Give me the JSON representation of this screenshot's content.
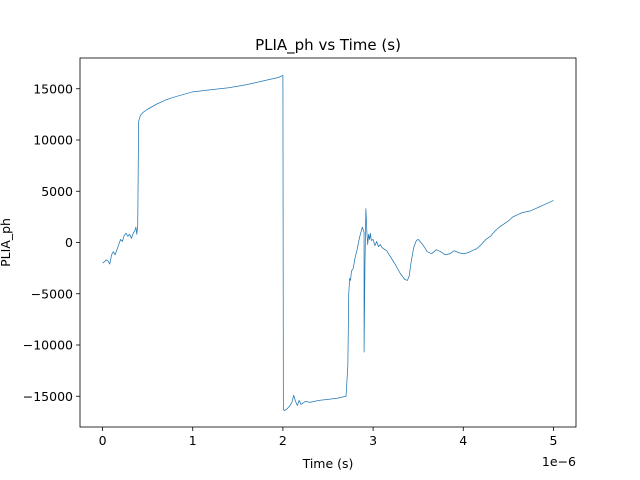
{
  "chart_data": {
    "type": "line",
    "title": "PLIA_ph vs Time (s)",
    "xlabel": "Time (s)",
    "ylabel": "PLIA_ph",
    "x_offset_label": "1e−6",
    "xlim": [
      -0.25,
      5.25
    ],
    "ylim": [
      -18000,
      18000
    ],
    "x_ticks": [
      0,
      1,
      2,
      3,
      4,
      5
    ],
    "x_tick_labels": [
      "0",
      "1",
      "2",
      "3",
      "4",
      "5"
    ],
    "y_ticks": [
      -15000,
      -10000,
      -5000,
      0,
      5000,
      10000,
      15000
    ],
    "y_tick_labels": [
      "−15000",
      "−10000",
      "−5000",
      "0",
      "5000",
      "10000",
      "15000"
    ],
    "grid": false,
    "line_color": "#1f77b4",
    "series": [
      {
        "x": [
          0.0,
          0.02,
          0.04,
          0.06,
          0.08,
          0.1,
          0.12,
          0.14,
          0.16,
          0.18,
          0.2,
          0.22,
          0.24,
          0.26,
          0.28,
          0.3,
          0.32,
          0.34,
          0.36,
          0.37,
          0.38,
          0.39,
          0.4,
          0.42,
          0.45,
          0.5,
          0.6,
          0.7,
          0.8,
          1.0,
          1.2,
          1.4,
          1.6,
          1.8,
          1.95,
          2.0,
          2.005,
          2.02,
          2.05,
          2.08,
          2.1,
          2.12,
          2.14,
          2.16,
          2.18,
          2.2,
          2.25,
          2.3,
          2.4,
          2.5,
          2.6,
          2.7,
          2.72,
          2.73,
          2.74,
          2.75,
          2.76,
          2.78,
          2.8,
          2.82,
          2.85,
          2.88,
          2.9,
          2.9,
          2.91,
          2.92,
          2.93,
          2.94,
          2.95,
          2.96,
          2.97,
          2.98,
          3.0,
          3.02,
          3.04,
          3.06,
          3.08,
          3.1,
          3.15,
          3.2,
          3.25,
          3.3,
          3.35,
          3.38,
          3.4,
          3.42,
          3.45,
          3.48,
          3.5,
          3.52,
          3.55,
          3.58,
          3.6,
          3.65,
          3.7,
          3.75,
          3.8,
          3.85,
          3.9,
          3.95,
          4.0,
          4.05,
          4.1,
          4.15,
          4.2,
          4.25,
          4.3,
          4.35,
          4.4,
          4.45,
          4.5,
          4.55,
          4.6,
          4.65,
          4.7,
          4.75,
          4.8,
          4.85,
          4.9,
          4.95,
          5.0
        ],
        "y": [
          -2000,
          -1900,
          -1700,
          -1800,
          -2100,
          -1200,
          -900,
          -1200,
          -700,
          -200,
          300,
          100,
          700,
          900,
          600,
          800,
          400,
          900,
          1200,
          1500,
          800,
          1600,
          11800,
          12400,
          12700,
          13000,
          13500,
          13900,
          14200,
          14700,
          14900,
          15100,
          15400,
          15800,
          16100,
          16300,
          -16300,
          -16400,
          -16200,
          -15900,
          -15600,
          -14900,
          -15500,
          -15900,
          -15400,
          -15800,
          -15500,
          -15600,
          -15400,
          -15300,
          -15200,
          -15000,
          -12000,
          -5000,
          -3500,
          -3700,
          -2800,
          -2500,
          -1500,
          -800,
          500,
          1500,
          1000,
          -10700,
          -2000,
          3300,
          1200,
          -200,
          800,
          300,
          900,
          200,
          300,
          -300,
          100,
          -400,
          -200,
          -500,
          -800,
          -1500,
          -2200,
          -3000,
          -3600,
          -3700,
          -3300,
          -2000,
          -500,
          200,
          300,
          100,
          -200,
          -600,
          -900,
          -1100,
          -700,
          -900,
          -1200,
          -1100,
          -800,
          -1000,
          -1100,
          -1000,
          -800,
          -600,
          -200,
          300,
          600,
          1100,
          1500,
          1800,
          2100,
          2500,
          2700,
          2900,
          3000,
          3100,
          3300,
          3500,
          3700,
          3900,
          4100
        ]
      }
    ]
  }
}
